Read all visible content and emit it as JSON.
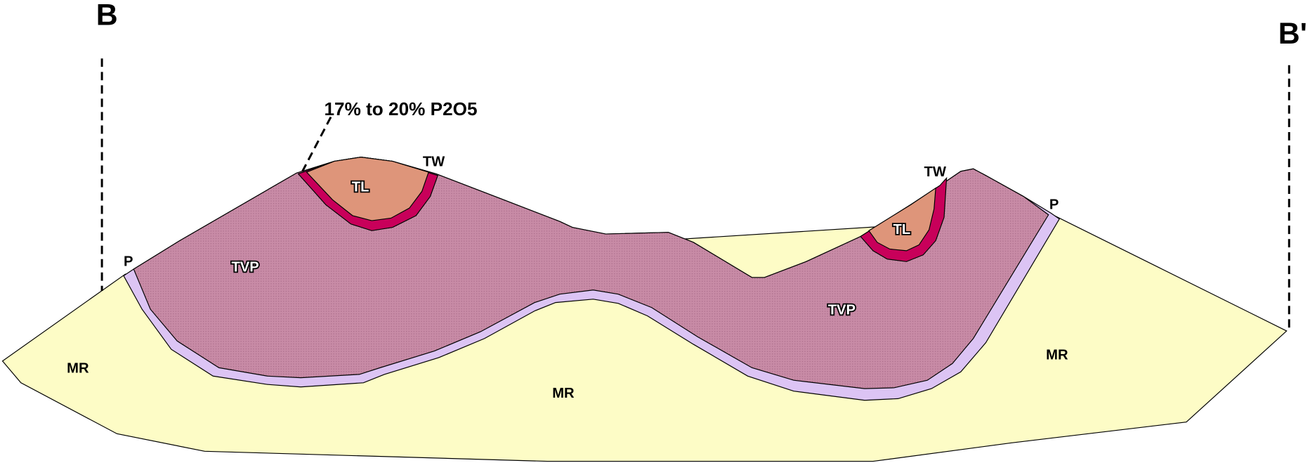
{
  "section_labels": {
    "left": "B",
    "right": "B'"
  },
  "annotation": "17% to 20% P2O5",
  "unit_labels": [
    "TW",
    "TL",
    "TW",
    "TL",
    "TVP",
    "TVP",
    "P",
    "P",
    "MR",
    "MR",
    "MR"
  ]
}
